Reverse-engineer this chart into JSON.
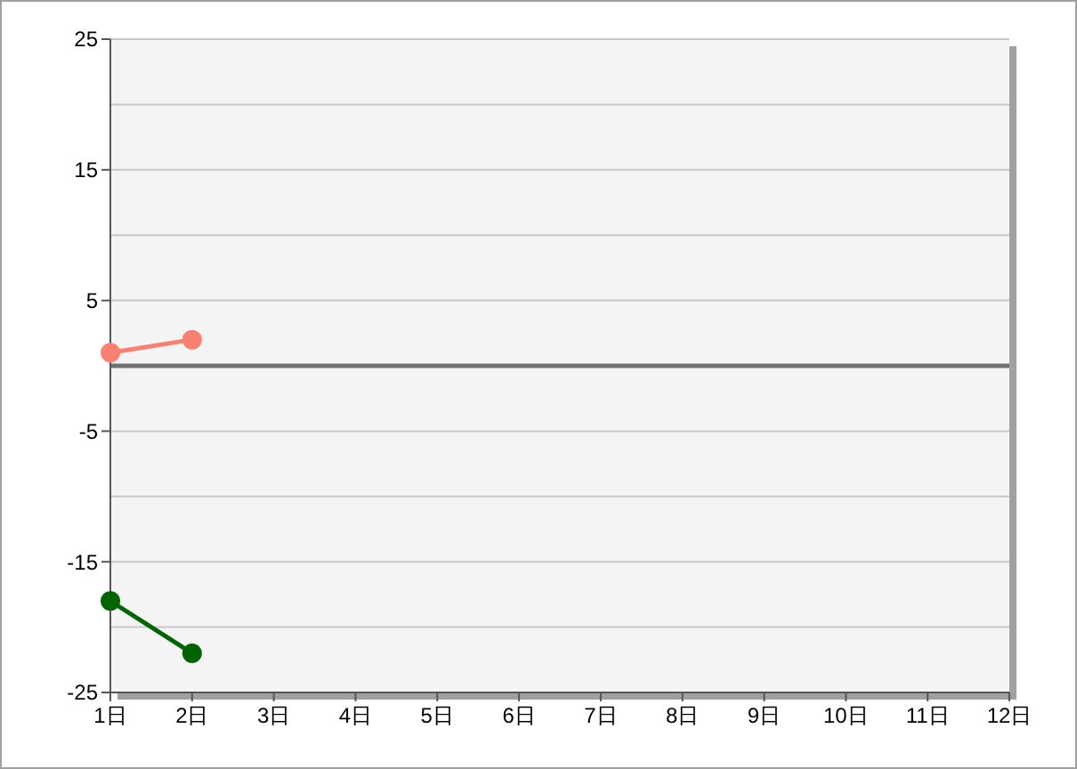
{
  "chart_data": {
    "type": "line",
    "x": [
      1,
      2
    ],
    "series": [
      {
        "color": "#fa8072",
        "values": [
          1,
          2
        ]
      },
      {
        "color": "#006400",
        "values": [
          -18,
          -22
        ]
      }
    ],
    "xlim": [
      1,
      12
    ],
    "xticks": [
      {
        "value": 1,
        "label": "1日"
      },
      {
        "value": 2,
        "label": "2日"
      },
      {
        "value": 3,
        "label": "3日"
      },
      {
        "value": 4,
        "label": "4日"
      },
      {
        "value": 5,
        "label": "5日"
      },
      {
        "value": 6,
        "label": "6日"
      },
      {
        "value": 7,
        "label": "7日"
      },
      {
        "value": 8,
        "label": "8日"
      },
      {
        "value": 9,
        "label": "9日"
      },
      {
        "value": 10,
        "label": "10日"
      },
      {
        "value": 11,
        "label": "11日"
      },
      {
        "value": 12,
        "label": "12日"
      }
    ],
    "ylim": [
      -25,
      25
    ],
    "yticks": [
      25,
      {
        "value": 20,
        "label": null
      },
      15,
      {
        "value": 10,
        "label": null
      },
      5,
      {
        "value": 0,
        "label": null
      },
      -5,
      {
        "value": -10,
        "label": null
      },
      -15,
      {
        "value": -20,
        "label": null
      },
      -25
    ],
    "ref_lines": [
      {
        "axis": "y",
        "value": 0,
        "color": "#707070"
      }
    ],
    "grid": "y",
    "marker": "circle",
    "line_style": "solid"
  }
}
